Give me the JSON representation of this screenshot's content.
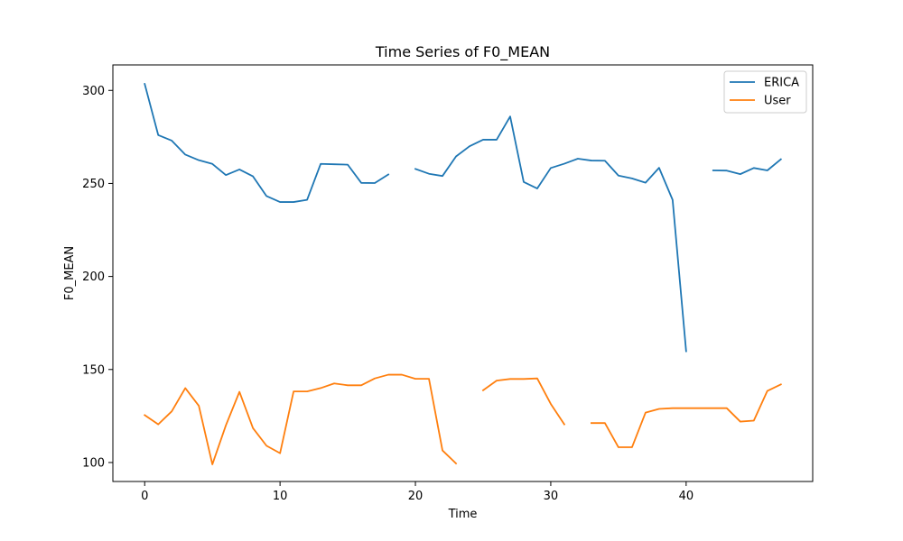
{
  "chart_data": {
    "type": "line",
    "title": "Time Series of F0_MEAN",
    "xlabel": "Time",
    "ylabel": "F0_MEAN",
    "xlim": [
      -2.35,
      49.35
    ],
    "ylim": [
      89.8,
      313.7
    ],
    "xticks": [
      0,
      10,
      20,
      30,
      40
    ],
    "yticks": [
      100,
      150,
      200,
      250,
      300
    ],
    "grid": false,
    "legend": "top-right",
    "series": [
      {
        "name": "ERICA",
        "color": "#1f77b4",
        "x": [
          0,
          1,
          2,
          3,
          4,
          5,
          6,
          7,
          8,
          9,
          10,
          11,
          12,
          13,
          14,
          15,
          16,
          17,
          18,
          19,
          20,
          21,
          22,
          23,
          24,
          25,
          26,
          27,
          28,
          29,
          30,
          31,
          32,
          33,
          34,
          35,
          36,
          37,
          38,
          39,
          40,
          41,
          42,
          43,
          44,
          45,
          46,
          47
        ],
        "y": [
          303.5,
          276,
          273,
          265.5,
          262.5,
          260.5,
          254.5,
          257.5,
          253.8,
          243.2,
          240,
          240,
          241.2,
          260.5,
          260.3,
          260.1,
          250.3,
          250.2,
          254.8,
          null,
          257.8,
          255.2,
          254,
          264.5,
          270,
          273.5,
          273.5,
          286,
          250.8,
          247.3,
          258.3,
          260.6,
          263.3,
          262.3,
          262.2,
          254.2,
          252.7,
          250.4,
          258.4,
          241.2,
          159.8,
          null,
          257,
          256.9,
          255,
          258.3,
          257,
          263
        ]
      },
      {
        "name": "User",
        "color": "#ff7f0e",
        "x": [
          0,
          1,
          2,
          3,
          4,
          5,
          6,
          7,
          8,
          9,
          10,
          11,
          12,
          13,
          14,
          15,
          16,
          17,
          18,
          19,
          20,
          21,
          22,
          23,
          24,
          25,
          26,
          27,
          28,
          29,
          30,
          31,
          32,
          33,
          34,
          35,
          36,
          37,
          38,
          39,
          40,
          41,
          42,
          43,
          44,
          45,
          46,
          47
        ],
        "y": [
          125.5,
          120.5,
          127.5,
          140,
          130.5,
          99,
          120,
          138,
          118.5,
          109,
          105,
          138.2,
          138.2,
          140,
          142.5,
          141.5,
          141.5,
          145.2,
          147.2,
          147.2,
          145,
          145,
          106.5,
          99.5,
          null,
          138.8,
          144,
          144.9,
          144.9,
          145.2,
          131.5,
          120.5,
          null,
          121.2,
          121.2,
          108.2,
          108.2,
          126.8,
          128.8,
          129.2,
          129.2,
          129.2,
          129.2,
          129.2,
          122,
          122.5,
          138.5,
          142
        ]
      }
    ]
  }
}
